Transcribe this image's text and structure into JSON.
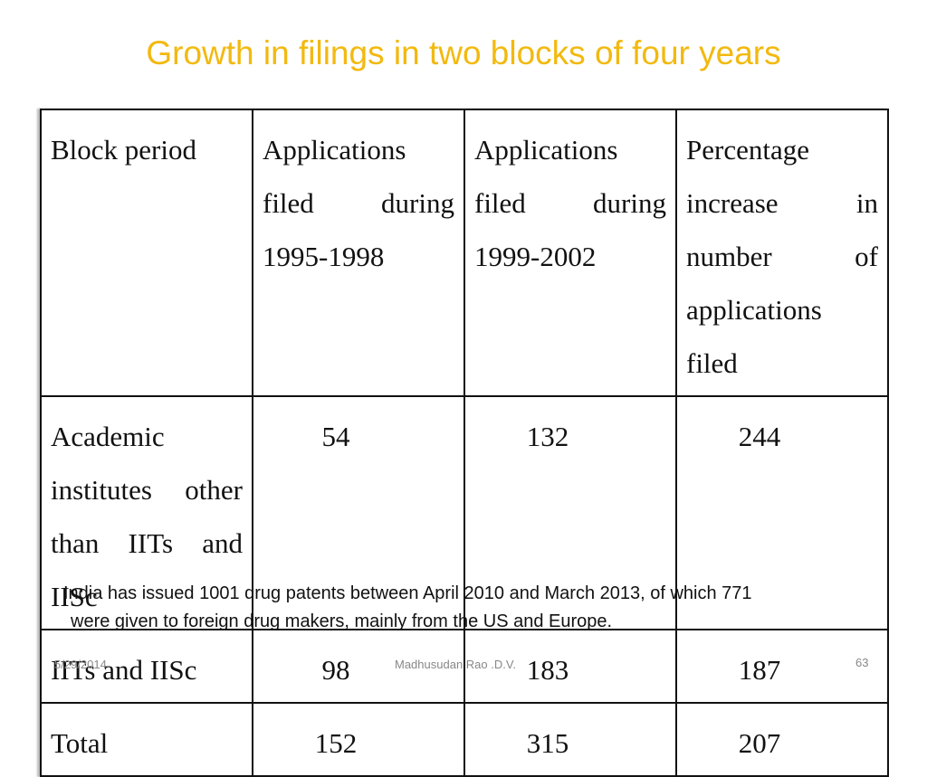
{
  "title": "Growth in filings in two blocks of four years",
  "table": {
    "header": [
      "Block period",
      "Applications filed during 1995-1998",
      "Applications filed during 1999-2002",
      "Percentage increase in number of applications filed"
    ],
    "rows": [
      [
        "Academic institutes other than IITs and IISc",
        54,
        132,
        244
      ],
      [
        "IITs and IISc",
        98,
        183,
        187
      ],
      [
        "Total",
        152,
        315,
        207
      ]
    ]
  },
  "note": [
    "India has issued 1001 drug patents between April 2010 and March 2013, of which 771",
    "were given to foreign drug makers, mainly from the US and Europe."
  ],
  "footer": {
    "date": "5/29/2014",
    "author": "Madhusudan Rao .D.V.",
    "page": 63
  }
}
